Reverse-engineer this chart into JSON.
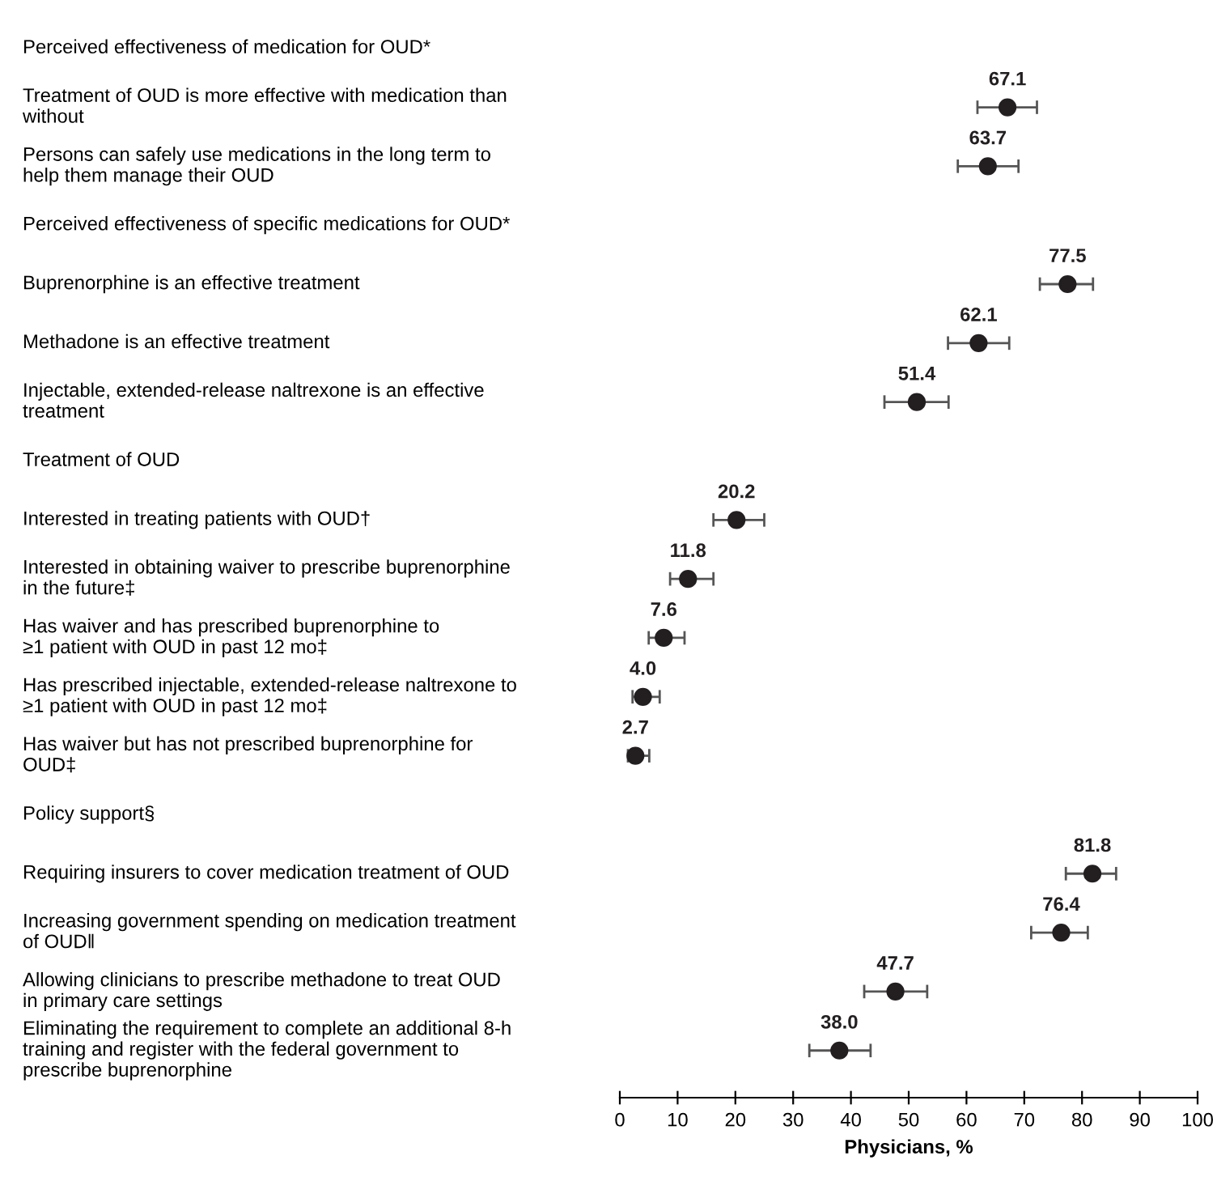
{
  "chart_data": {
    "type": "scatter",
    "orientation": "horizontal",
    "categories": [
      "Perceived effectiveness of medication for OUD*",
      "Treatment of OUD is more effective with medication than\nwithout",
      "Persons can safely use medications in the long term to\nhelp them manage their OUD",
      "Perceived effectiveness of specific medications for OUD*",
      "Buprenorphine is an effective treatment",
      "Methadone is an effective treatment",
      "Injectable, extended-release naltrexone is an effective\ntreatment",
      "Treatment of OUD",
      "Interested in treating patients with OUD†",
      "Interested in obtaining waiver to prescribe buprenorphine\nin the future‡",
      "Has waiver and has prescribed buprenorphine to\n≥1 patient with OUD in past 12 mo‡",
      "Has prescribed injectable, extended-release naltrexone to\n≥1 patient with OUD in past 12 mo‡",
      "Has waiver but has not prescribed buprenorphine for\nOUD‡",
      "Policy support§",
      "Requiring insurers to cover medication treatment of OUD",
      "Increasing government spending on medication treatment\nof OUD‖",
      "Allowing clinicians to prescribe methadone to treat OUD\nin primary care settings",
      "Eliminating the requirement to complete an additional 8-h\ntraining and register with the federal government to\nprescribe buprenorphine"
    ],
    "values": [
      null,
      67.1,
      63.7,
      null,
      77.5,
      62.1,
      51.4,
      null,
      20.2,
      11.8,
      7.6,
      4.0,
      2.7,
      null,
      81.8,
      76.4,
      47.7,
      38.0
    ],
    "errors": [
      null,
      [
        61.9,
        72.2
      ],
      [
        58.5,
        69.0
      ],
      null,
      [
        72.7,
        81.9
      ],
      [
        56.8,
        67.4
      ],
      [
        45.8,
        56.9
      ],
      null,
      [
        16.2,
        25.0
      ],
      [
        8.7,
        16.2
      ],
      [
        5.0,
        11.2
      ],
      [
        2.2,
        6.9
      ],
      [
        1.4,
        5.1
      ],
      null,
      [
        77.2,
        85.9
      ],
      [
        71.2,
        81.0
      ],
      [
        42.3,
        53.2
      ],
      [
        32.8,
        43.4
      ]
    ],
    "value_labels": [
      null,
      "67.1",
      "63.7",
      null,
      "77.5",
      "62.1",
      "51.4",
      null,
      "20.2",
      "11.8",
      "7.6",
      "4.0",
      "2.7",
      null,
      "81.8",
      "76.4",
      "47.7",
      "38.0"
    ],
    "color": "#231f20",
    "marker": "circle",
    "xlabel": "Physicians, %",
    "xlim": [
      0,
      100
    ],
    "xticks": [
      0,
      10,
      20,
      30,
      40,
      50,
      60,
      70,
      80,
      90,
      100
    ],
    "grid": false,
    "legend": false
  }
}
